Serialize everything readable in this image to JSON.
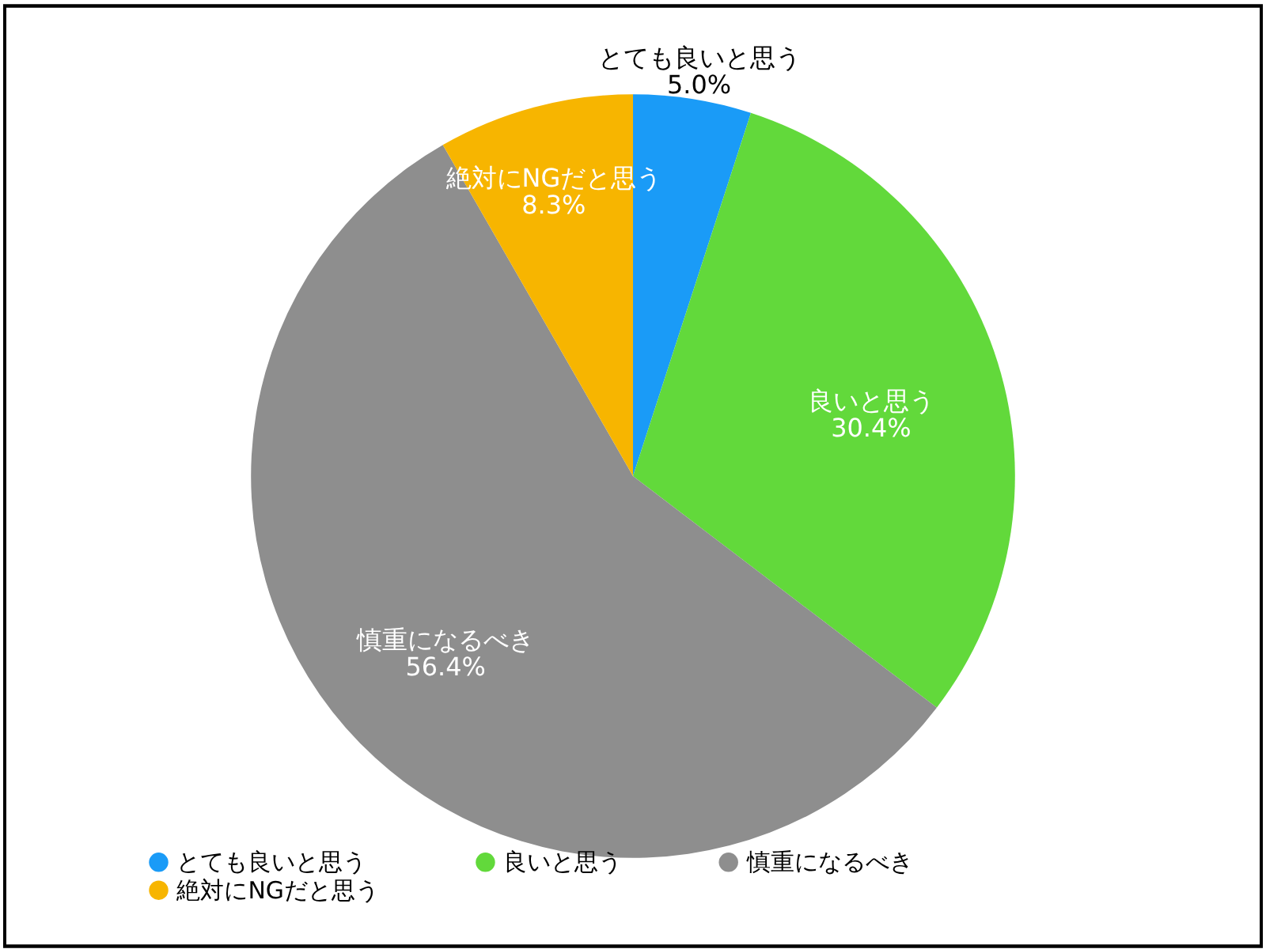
{
  "chart_data": {
    "type": "pie",
    "categories": [
      "とても良いと思う",
      "良いと思う",
      "慎重になるべき",
      "絶対にNGだと思う"
    ],
    "values": [
      5.0,
      30.4,
      56.4,
      8.3
    ],
    "value_labels": [
      "5.0%",
      "30.4%",
      "56.4%",
      "8.3%"
    ],
    "colors": [
      "#1a9bf7",
      "#62d93b",
      "#8e8e8e",
      "#f7b500"
    ],
    "legend": "bottom"
  }
}
